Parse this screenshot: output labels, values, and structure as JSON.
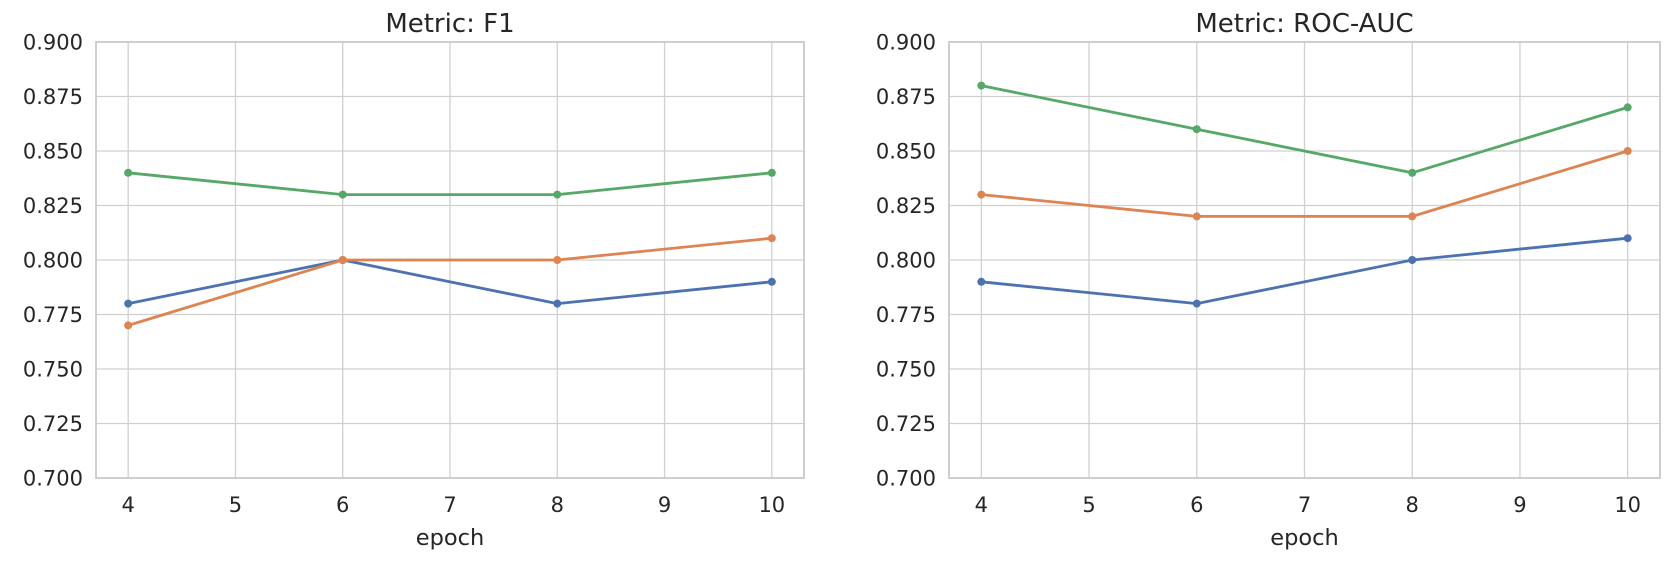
{
  "style": {
    "background": "#ffffff",
    "text_color": "#262626",
    "grid_color": "#d0d0d0",
    "spine_color": "#cacaca"
  },
  "chart_data": [
    {
      "type": "line",
      "title": "Metric: F1",
      "xlabel": "epoch",
      "ylabel": "",
      "x": [
        4,
        6,
        8,
        10
      ],
      "xticks": [
        4,
        5,
        6,
        7,
        8,
        9,
        10
      ],
      "yticks": [
        0.7,
        0.725,
        0.75,
        0.775,
        0.8,
        0.825,
        0.85,
        0.875,
        0.9
      ],
      "xlim": [
        3.7,
        10.3
      ],
      "ylim": [
        0.7,
        0.9
      ],
      "grid": true,
      "legend": "none",
      "series": [
        {
          "name": "blue",
          "color": "#4C72B0",
          "values": [
            0.78,
            0.8,
            0.78,
            0.79
          ]
        },
        {
          "name": "orange",
          "color": "#DD8452",
          "values": [
            0.77,
            0.8,
            0.8,
            0.81
          ]
        },
        {
          "name": "green",
          "color": "#55A868",
          "values": [
            0.84,
            0.83,
            0.83,
            0.84
          ]
        }
      ]
    },
    {
      "type": "line",
      "title": "Metric: ROC-AUC",
      "xlabel": "epoch",
      "ylabel": "",
      "x": [
        4,
        6,
        8,
        10
      ],
      "xticks": [
        4,
        5,
        6,
        7,
        8,
        9,
        10
      ],
      "yticks": [
        0.7,
        0.725,
        0.75,
        0.775,
        0.8,
        0.825,
        0.85,
        0.875,
        0.9
      ],
      "xlim": [
        3.7,
        10.3
      ],
      "ylim": [
        0.7,
        0.9
      ],
      "grid": true,
      "legend": "none",
      "series": [
        {
          "name": "blue",
          "color": "#4C72B0",
          "values": [
            0.79,
            0.78,
            0.8,
            0.81
          ]
        },
        {
          "name": "orange",
          "color": "#DD8452",
          "values": [
            0.83,
            0.82,
            0.82,
            0.85
          ]
        },
        {
          "name": "green",
          "color": "#55A868",
          "values": [
            0.88,
            0.86,
            0.84,
            0.87
          ]
        }
      ]
    }
  ]
}
